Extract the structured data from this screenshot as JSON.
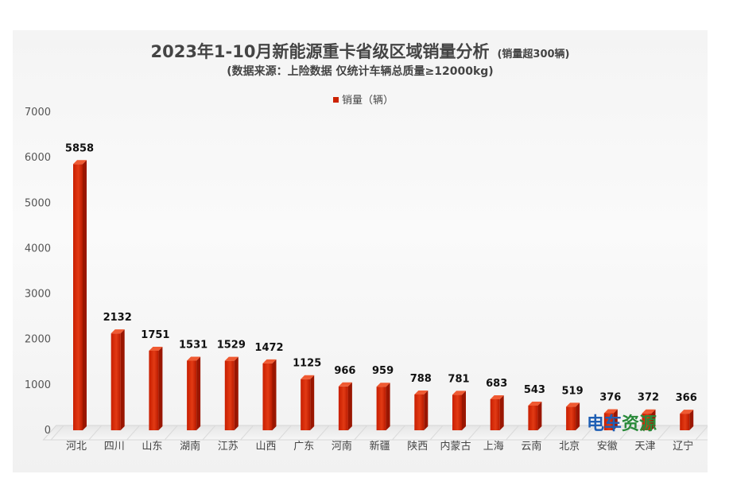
{
  "chart_data": {
    "type": "bar",
    "title": "2023年1-10月新能源重卡省级区域销量分析",
    "title_note": "(销量超300辆)",
    "subtitle": "(数据来源：上险数据  仅统计车辆总质量≥12000kg)",
    "xlabel": "",
    "ylabel": "",
    "ylim": [
      0,
      7000
    ],
    "yticks": [
      0,
      1000,
      2000,
      3000,
      4000,
      5000,
      6000,
      7000
    ],
    "legend_position": "top-center",
    "grid": false,
    "categories": [
      "河北",
      "四川",
      "山东",
      "湖南",
      "江苏",
      "山西",
      "广东",
      "河南",
      "新疆",
      "陕西",
      "内蒙古",
      "上海",
      "云南",
      "北京",
      "安徽",
      "天津",
      "辽宁"
    ],
    "series": [
      {
        "name": "销量（辆）",
        "color": "#cc2200",
        "values": [
          5858,
          2132,
          1751,
          1531,
          1529,
          1472,
          1125,
          966,
          959,
          788,
          781,
          683,
          543,
          519,
          376,
          372,
          366
        ]
      }
    ]
  },
  "watermark": {
    "text": "电车资源",
    "colors": [
      "#1f5fb4",
      "#2a8a3a"
    ]
  }
}
